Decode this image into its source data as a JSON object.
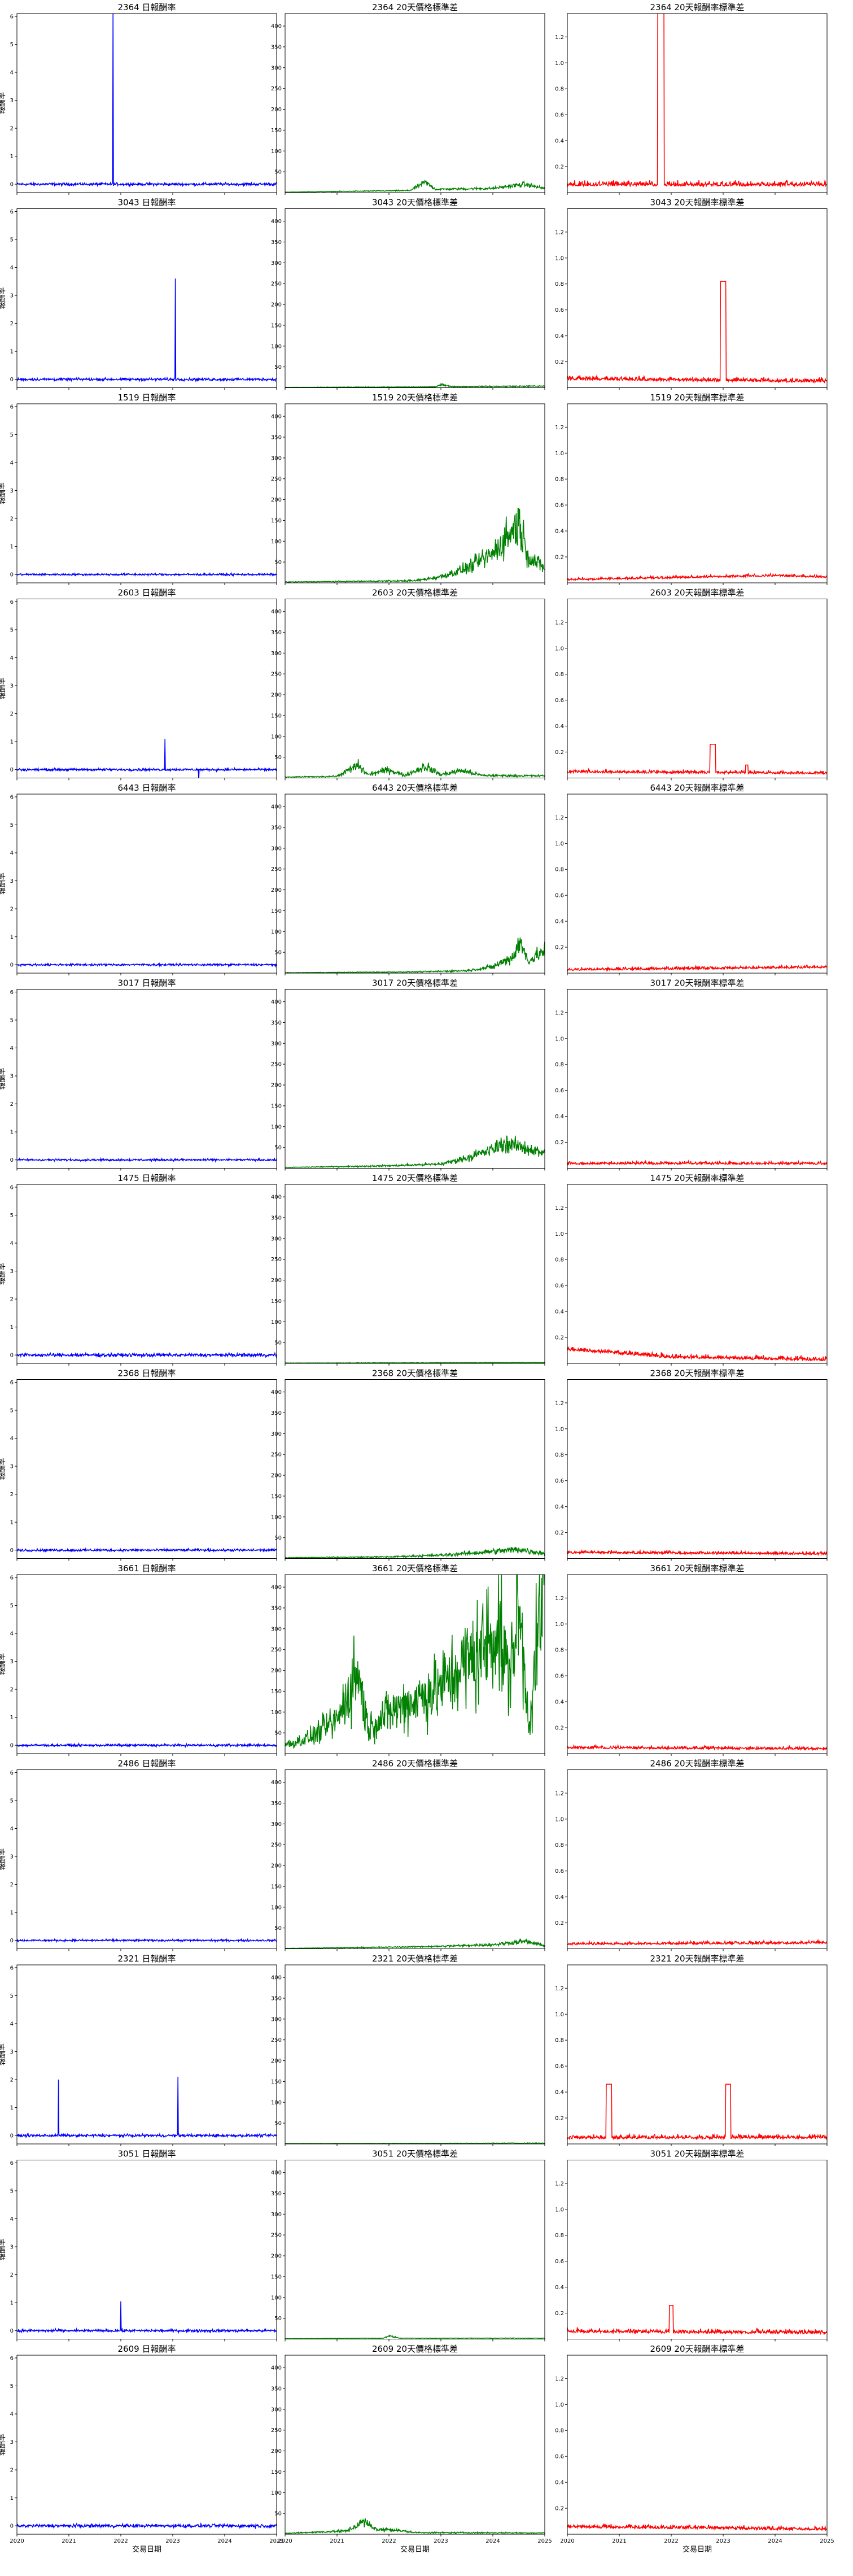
{
  "chart_data": {
    "type": "line",
    "stocks": [
      "2364",
      "3043",
      "1519",
      "2603",
      "6443",
      "3017",
      "1475",
      "2368",
      "3661",
      "2486",
      "2321",
      "3051",
      "2609"
    ],
    "panels": [
      {
        "key": "ret",
        "title_suffix": " 日報酬率",
        "color": "#0000ff",
        "ylabel": "報酬率",
        "ylim": [
          -0.3,
          6.1
        ],
        "yticks": [
          0,
          1,
          2,
          3,
          4,
          5,
          6
        ]
      },
      {
        "key": "price_std",
        "title_suffix": " 20天價格標準差",
        "color": "#008000",
        "ylabel": "",
        "ylim": [
          0,
          430
        ],
        "yticks": [
          50,
          100,
          150,
          200,
          250,
          300,
          350,
          400
        ]
      },
      {
        "key": "ret_std",
        "title_suffix": " 20天報酬率標準差",
        "color": "#ff0000",
        "ylabel": "",
        "ylim": [
          0,
          1.38
        ],
        "yticks": [
          0.2,
          0.4,
          0.6,
          0.8,
          1.0,
          1.2
        ]
      }
    ],
    "xlim": [
      2020.0,
      2025.0
    ],
    "xticks": [
      "2020",
      "2021",
      "2022",
      "2023",
      "2024",
      "2025"
    ],
    "xlabel": "交易日期",
    "noise_level": {
      "ret": [
        0.04,
        0.04,
        0.03,
        0.035,
        0.03,
        0.03,
        0.05,
        0.035,
        0.035,
        0.03,
        0.04,
        0.04,
        0.05
      ],
      "ret_std": [
        0.06,
        0.05,
        0.03,
        0.04,
        0.035,
        0.035,
        0.05,
        0.035,
        0.035,
        0.035,
        0.05,
        0.05,
        0.045
      ]
    },
    "spikes": {
      "2364": {
        "ret": [
          [
            2021.85,
            6.3
          ]
        ],
        "price_std": [
          [
            2022.7,
            25
          ],
          [
            2024.6,
            20
          ]
        ],
        "ret_std": [
          [
            2021.8,
            1.5,
            0.12
          ]
        ]
      },
      "3043": {
        "ret": [
          [
            2023.05,
            3.6
          ]
        ],
        "price_std": [
          [
            2023.0,
            8
          ]
        ],
        "ret_std": [
          [
            2023.0,
            0.82,
            0.1
          ]
        ]
      },
      "1519": {
        "ret": [],
        "price_std": [],
        "ret_std": []
      },
      "2603": {
        "ret": [
          [
            2022.85,
            1.1
          ],
          [
            2023.5,
            -0.45
          ]
        ],
        "price_std": [
          [
            2021.4,
            30
          ],
          [
            2022.0,
            20
          ],
          [
            2022.7,
            28
          ],
          [
            2023.4,
            18
          ]
        ],
        "ret_std": [
          [
            2022.8,
            0.26,
            0.1
          ],
          [
            2023.45,
            0.1,
            0.05
          ]
        ]
      },
      "6443": {
        "ret": [],
        "price_std": [],
        "ret_std": []
      },
      "3017": {
        "ret": [],
        "price_std": [],
        "ret_std": []
      },
      "1475": {
        "ret": [],
        "price_std": [],
        "ret_std": []
      },
      "2368": {
        "ret": [],
        "price_std": [],
        "ret_std": []
      },
      "3661": {
        "ret": [],
        "price_std": [],
        "ret_std": []
      },
      "2486": {
        "ret": [],
        "price_std": [],
        "ret_std": []
      },
      "2321": {
        "ret": [
          [
            2020.8,
            2.0
          ],
          [
            2023.1,
            2.1
          ]
        ],
        "price_std": [],
        "ret_std": [
          [
            2020.8,
            0.46,
            0.1
          ],
          [
            2023.1,
            0.46,
            0.1
          ]
        ]
      },
      "3051": {
        "ret": [
          [
            2022.0,
            1.05
          ]
        ],
        "price_std": [
          [
            2022.0,
            8
          ]
        ],
        "ret_std": [
          [
            2022.0,
            0.26,
            0.08
          ],
          [
            2023.4,
            0.06,
            0.05
          ]
        ]
      },
      "2609": {
        "ret": [],
        "price_std": [
          [
            2021.5,
            30
          ],
          [
            2022.0,
            12
          ]
        ],
        "ret_std": []
      }
    },
    "price_std_trend": {
      "2364": [
        [
          2020.0,
          1
        ],
        [
          2022.4,
          5
        ],
        [
          2022.7,
          25
        ],
        [
          2022.9,
          8
        ],
        [
          2024.0,
          10
        ],
        [
          2024.6,
          20
        ],
        [
          2025.0,
          10
        ]
      ],
      "3043": [
        [
          2020.0,
          1
        ],
        [
          2022.9,
          2
        ],
        [
          2023.0,
          8
        ],
        [
          2023.2,
          3
        ],
        [
          2025.0,
          4
        ]
      ],
      "1519": [
        [
          2020.0,
          2
        ],
        [
          2022.5,
          5
        ],
        [
          2023.0,
          15
        ],
        [
          2023.5,
          35
        ],
        [
          2024.0,
          70
        ],
        [
          2024.5,
          145
        ],
        [
          2024.7,
          60
        ],
        [
          2025.0,
          35
        ]
      ],
      "2603": [
        [
          2020.0,
          2
        ],
        [
          2021.0,
          4
        ],
        [
          2021.4,
          30
        ],
        [
          2021.6,
          8
        ],
        [
          2022.0,
          20
        ],
        [
          2022.3,
          6
        ],
        [
          2022.7,
          28
        ],
        [
          2023.0,
          8
        ],
        [
          2023.4,
          18
        ],
        [
          2023.8,
          6
        ],
        [
          2025.0,
          5
        ]
      ],
      "6443": [
        [
          2020.0,
          1
        ],
        [
          2022.5,
          3
        ],
        [
          2023.5,
          6
        ],
        [
          2024.0,
          15
        ],
        [
          2024.4,
          40
        ],
        [
          2024.5,
          75
        ],
        [
          2024.7,
          30
        ],
        [
          2025.0,
          55
        ]
      ],
      "3017": [
        [
          2020.0,
          2
        ],
        [
          2022.0,
          6
        ],
        [
          2023.0,
          10
        ],
        [
          2023.5,
          25
        ],
        [
          2024.0,
          45
        ],
        [
          2024.2,
          60
        ],
        [
          2024.6,
          50
        ],
        [
          2025.0,
          35
        ]
      ],
      "1475": [
        [
          2020.0,
          1
        ],
        [
          2025.0,
          2
        ]
      ],
      "2368": [
        [
          2020.0,
          2
        ],
        [
          2022.0,
          4
        ],
        [
          2023.0,
          8
        ],
        [
          2023.8,
          15
        ],
        [
          2024.5,
          22
        ],
        [
          2025.0,
          12
        ]
      ],
      "3661": [
        [
          2020.0,
          20
        ],
        [
          2020.5,
          40
        ],
        [
          2021.0,
          80
        ],
        [
          2021.4,
          200
        ],
        [
          2021.6,
          60
        ],
        [
          2022.0,
          100
        ],
        [
          2022.5,
          130
        ],
        [
          2023.0,
          160
        ],
        [
          2023.5,
          220
        ],
        [
          2023.8,
          250
        ],
        [
          2024.1,
          310
        ],
        [
          2024.3,
          180
        ],
        [
          2024.5,
          350
        ],
        [
          2024.7,
          70
        ],
        [
          2025.0,
          430
        ]
      ],
      "2486": [
        [
          2020.0,
          1
        ],
        [
          2022.0,
          4
        ],
        [
          2023.0,
          6
        ],
        [
          2024.0,
          10
        ],
        [
          2024.6,
          18
        ],
        [
          2025.0,
          8
        ]
      ],
      "2321": [
        [
          2020.0,
          1
        ],
        [
          2025.0,
          2
        ]
      ],
      "3051": [
        [
          2020.0,
          1
        ],
        [
          2021.9,
          2
        ],
        [
          2022.0,
          8
        ],
        [
          2022.2,
          2
        ],
        [
          2025.0,
          2
        ]
      ],
      "2609": [
        [
          2020.0,
          2
        ],
        [
          2021.2,
          8
        ],
        [
          2021.5,
          30
        ],
        [
          2021.8,
          10
        ],
        [
          2022.0,
          12
        ],
        [
          2022.5,
          4
        ],
        [
          2025.0,
          3
        ]
      ]
    },
    "price_std_noise": [
      0.25,
      0.3,
      0.35,
      0.4,
      0.35,
      0.3,
      0.3,
      0.35,
      0.45,
      0.3,
      0.3,
      0.3,
      0.35
    ],
    "ret_std_trend": {
      "2364": [
        [
          2020.0,
          0.05
        ],
        [
          2025.0,
          0.05
        ]
      ],
      "3043": [
        [
          2020.0,
          0.06
        ],
        [
          2025.0,
          0.04
        ]
      ],
      "1519": [
        [
          2020.0,
          0.02
        ],
        [
          2024.0,
          0.05
        ],
        [
          2025.0,
          0.04
        ]
      ],
      "2603": [
        [
          2020.0,
          0.04
        ],
        [
          2025.0,
          0.03
        ]
      ],
      "6443": [
        [
          2020.0,
          0.02
        ],
        [
          2025.0,
          0.04
        ]
      ],
      "3017": [
        [
          2020.0,
          0.03
        ],
        [
          2025.0,
          0.03
        ]
      ],
      "1475": [
        [
          2020.0,
          0.1
        ],
        [
          2022.0,
          0.04
        ],
        [
          2025.0,
          0.02
        ]
      ],
      "2368": [
        [
          2020.0,
          0.04
        ],
        [
          2025.0,
          0.03
        ]
      ],
      "3661": [
        [
          2020.0,
          0.04
        ],
        [
          2025.0,
          0.03
        ]
      ],
      "2486": [
        [
          2020.0,
          0.03
        ],
        [
          2025.0,
          0.04
        ]
      ],
      "2321": [
        [
          2020.0,
          0.04
        ],
        [
          2025.0,
          0.04
        ]
      ],
      "3051": [
        [
          2020.0,
          0.05
        ],
        [
          2025.0,
          0.04
        ]
      ],
      "2609": [
        [
          2020.0,
          0.05
        ],
        [
          2025.0,
          0.03
        ]
      ]
    }
  }
}
